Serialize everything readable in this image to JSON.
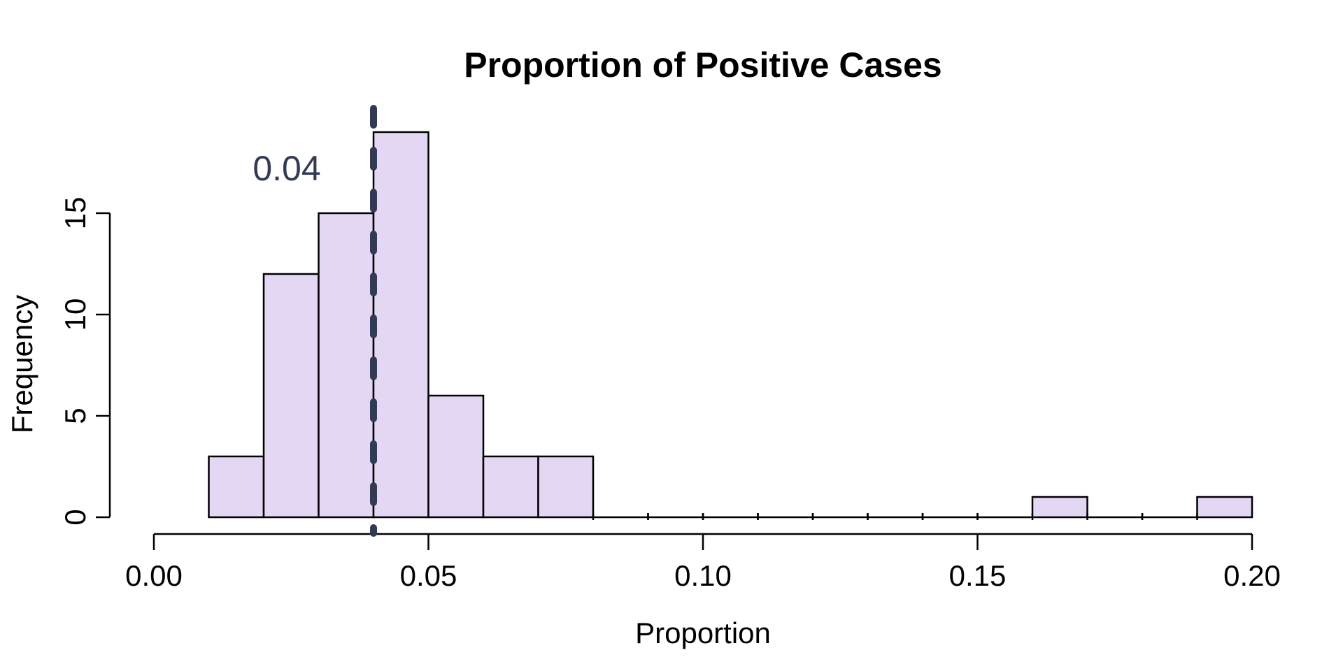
{
  "figure": {
    "background": "#FFFFFF"
  },
  "chart_data": {
    "type": "histogram",
    "title": "Proportion of Positive Cases",
    "xlabel": "Proportion",
    "ylabel": "Frequency",
    "xlim": [
      0.0,
      0.2
    ],
    "ylim": [
      0,
      19
    ],
    "grid": false,
    "legend": null,
    "bin_width": 0.01,
    "bar_fill": "#E4D7F3",
    "bar_border": "#000000",
    "axis_color": "#000000",
    "bins": [
      {
        "start": 0.01,
        "end": 0.02,
        "count": 3
      },
      {
        "start": 0.02,
        "end": 0.03,
        "count": 12
      },
      {
        "start": 0.03,
        "end": 0.04,
        "count": 15
      },
      {
        "start": 0.04,
        "end": 0.05,
        "count": 19
      },
      {
        "start": 0.05,
        "end": 0.06,
        "count": 6
      },
      {
        "start": 0.06,
        "end": 0.07,
        "count": 3
      },
      {
        "start": 0.07,
        "end": 0.08,
        "count": 3
      },
      {
        "start": 0.08,
        "end": 0.09,
        "count": 0
      },
      {
        "start": 0.09,
        "end": 0.1,
        "count": 0
      },
      {
        "start": 0.1,
        "end": 0.11,
        "count": 0
      },
      {
        "start": 0.11,
        "end": 0.12,
        "count": 0
      },
      {
        "start": 0.12,
        "end": 0.13,
        "count": 0
      },
      {
        "start": 0.13,
        "end": 0.14,
        "count": 0
      },
      {
        "start": 0.14,
        "end": 0.15,
        "count": 0
      },
      {
        "start": 0.15,
        "end": 0.16,
        "count": 0
      },
      {
        "start": 0.16,
        "end": 0.17,
        "count": 1
      },
      {
        "start": 0.17,
        "end": 0.18,
        "count": 0
      },
      {
        "start": 0.18,
        "end": 0.19,
        "count": 0
      },
      {
        "start": 0.19,
        "end": 0.2,
        "count": 1
      }
    ],
    "x_ticks": [
      {
        "value": 0.0,
        "label": "0.00"
      },
      {
        "value": 0.05,
        "label": "0.05"
      },
      {
        "value": 0.1,
        "label": "0.10"
      },
      {
        "value": 0.15,
        "label": "0.15"
      },
      {
        "value": 0.2,
        "label": "0.20"
      }
    ],
    "y_ticks": [
      {
        "value": 0,
        "label": "0"
      },
      {
        "value": 5,
        "label": "5"
      },
      {
        "value": 10,
        "label": "10"
      },
      {
        "value": 15,
        "label": "15"
      }
    ],
    "vline": {
      "x": 0.04,
      "label": "0.04",
      "color": "#333A56",
      "style": "dashed"
    }
  }
}
